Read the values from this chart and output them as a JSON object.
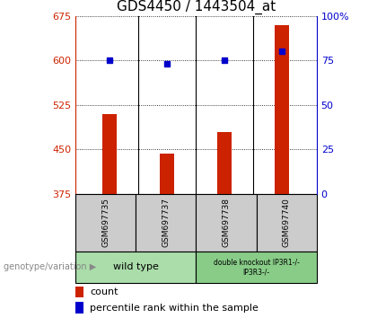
{
  "title": "GDS4450 / 1443504_at",
  "samples": [
    "GSM697735",
    "GSM697737",
    "GSM697738",
    "GSM697740"
  ],
  "counts": [
    510,
    443,
    480,
    660
  ],
  "percentiles": [
    75,
    73,
    75,
    80
  ],
  "ylim_left": [
    375,
    675
  ],
  "ylim_right": [
    0,
    100
  ],
  "yticks_left": [
    375,
    450,
    525,
    600,
    675
  ],
  "yticks_right": [
    0,
    25,
    50,
    75,
    100
  ],
  "bar_color": "#cc2200",
  "dot_color": "#0000cc",
  "bg_plot": "#ffffff",
  "bg_sample": "#cccccc",
  "bg_label1": "#aaddaa",
  "bg_label2": "#88cc88",
  "label1_text": "wild type",
  "label2_text": "double knockout IP3R1-/-\nIP3R3-/-",
  "genotype_label": "genotype/variation",
  "legend_count": "count",
  "legend_pct": "percentile rank within the sample",
  "title_fontsize": 11,
  "tick_fontsize": 8,
  "left_color": "#cc2200",
  "right_color": "#0000cc",
  "bar_width": 0.25
}
